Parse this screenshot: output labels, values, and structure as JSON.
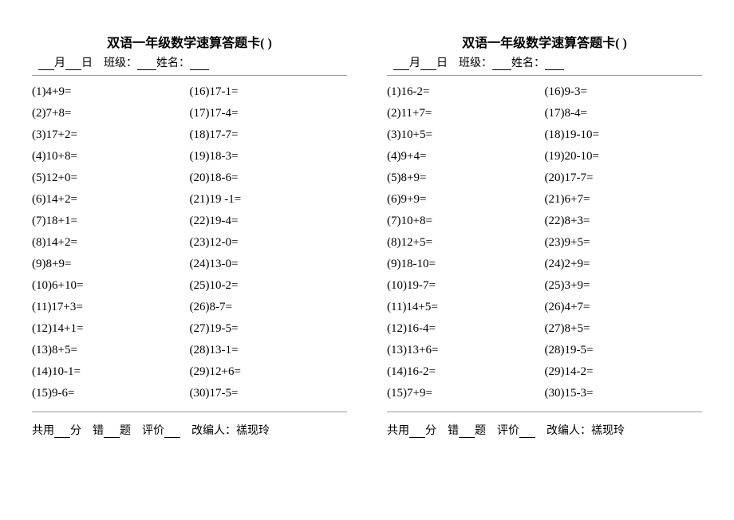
{
  "title": "双语一年级数学速算答题卡(  )",
  "info": {
    "month_label": "月",
    "day_label": "日",
    "class_label": "班级：",
    "name_label": "姓名："
  },
  "footer": {
    "time_label": "共用",
    "min_label": "分",
    "wrong_label": "错",
    "question_label": "题",
    "eval_label": "评价",
    "editor_label": "改编人：禚现玲"
  },
  "card1": {
    "col1": [
      "(1)4+9=",
      "(2)7+8=",
      "(3)17+2=",
      "(4)10+8=",
      "(5)12+0=",
      "(6)14+2=",
      "(7)18+1=",
      "(8)14+2=",
      "(9)8+9=",
      "(10)6+10=",
      "(11)17+3=",
      "(12)14+1=",
      "(13)8+5=",
      "(14)10-1=",
      "(15)9-6="
    ],
    "col2": [
      "(16)17-1=",
      "(17)17-4=",
      "(18)17-7=",
      "(19)18-3=",
      "(20)18-6=",
      "(21)19 -1=",
      "(22)19-4=",
      "(23)12-0=",
      "(24)13-0=",
      "(25)10-2=",
      "(26)8-7=",
      "(27)19-5=",
      "(28)13-1=",
      "(29)12+6=",
      "(30)17-5="
    ]
  },
  "card2": {
    "col1": [
      "(1)16-2=",
      "(2)11+7=",
      "(3)10+5=",
      "(4)9+4=",
      "(5)8+9=",
      "(6)9+9=",
      "(7)10+8=",
      "(8)12+5=",
      "(9)18-10=",
      "(10)19-7=",
      "(11)14+5=",
      "(12)16-4=",
      "(13)13+6=",
      "(14)16-2=",
      "(15)7+9="
    ],
    "col2": [
      "(16)9-3=",
      "(17)8-4=",
      "(18)19-10=",
      "(19)20-10=",
      "(20)17-7=",
      "(21)6+7=",
      "(22)8+3=",
      "(23)9+5=",
      "(24)2+9=",
      "(25)3+9=",
      "(26)4+7=",
      "(27)8+5=",
      "(28)19-5=",
      "(29)14-2=",
      "(30)15-3="
    ]
  }
}
